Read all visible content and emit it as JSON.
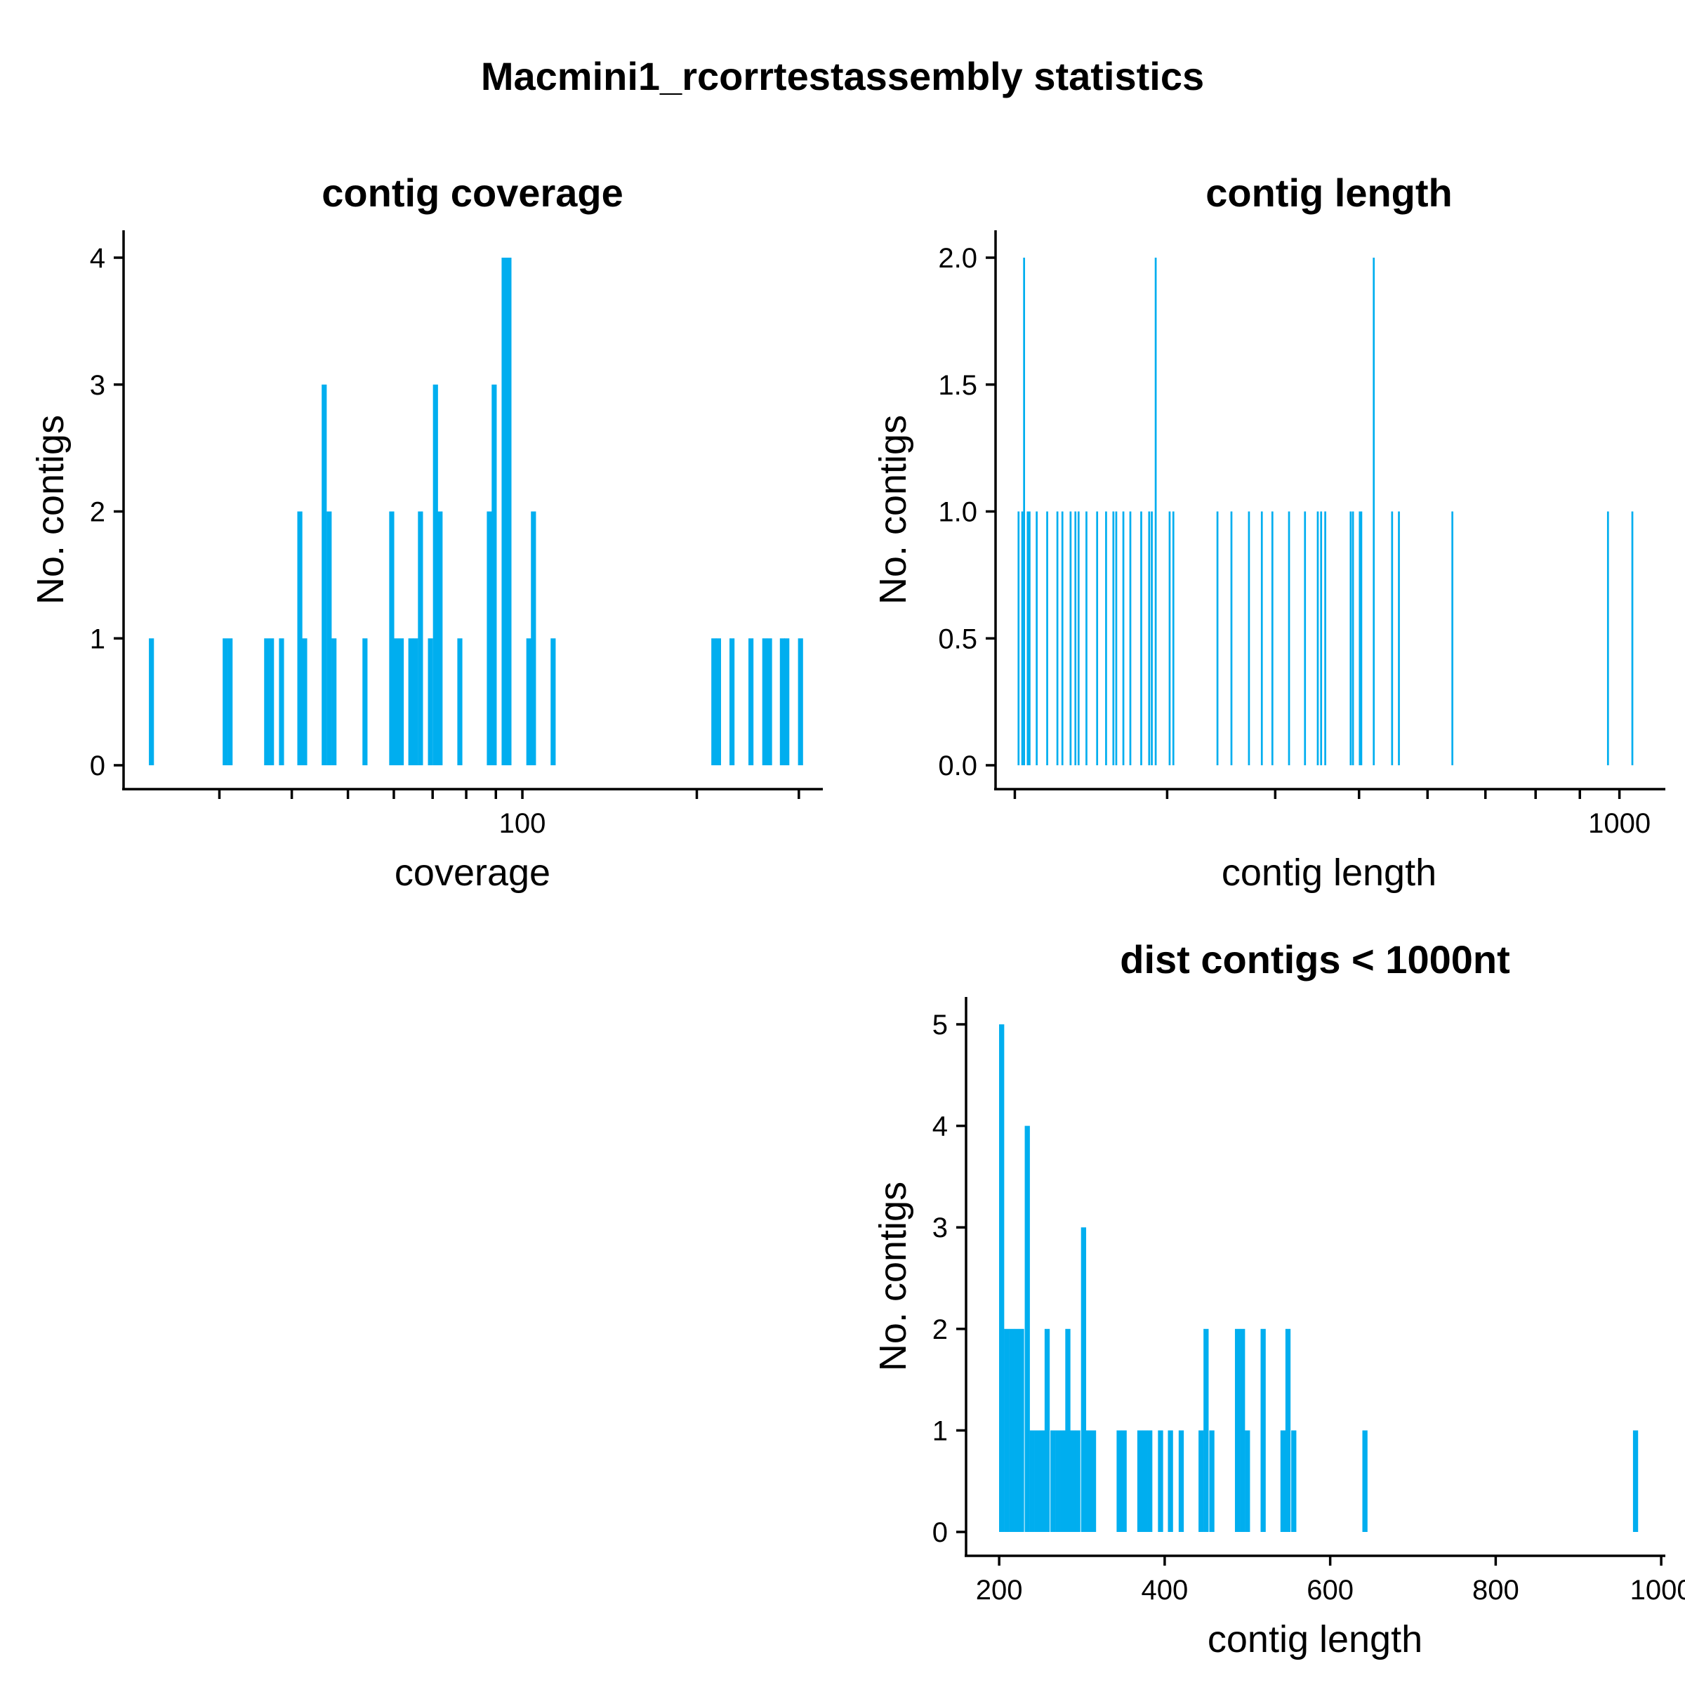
{
  "figure": {
    "title": "Macmini1_rcorrtestassembly statistics",
    "bar_color": "#00AEEF"
  },
  "chart_data": [
    {
      "id": "coverage",
      "type": "bar",
      "title": "contig coverage",
      "xlabel": "coverage",
      "ylabel": "No. contigs",
      "x_scale": "log",
      "xlim": [
        20.5,
        330
      ],
      "ylim": [
        0,
        4.2
      ],
      "x_major_ticks": [
        100
      ],
      "x_minor_ticks": [
        30,
        40,
        50,
        60,
        70,
        80,
        90,
        200,
        300
      ],
      "y_ticks": [
        0,
        1,
        2,
        3,
        4
      ],
      "bin_width_log10": 0.0087,
      "bins": [
        {
          "x": 22.9,
          "count": 1
        },
        {
          "x": 30.7,
          "count": 1
        },
        {
          "x": 31.3,
          "count": 1
        },
        {
          "x": 36.2,
          "count": 1
        },
        {
          "x": 36.9,
          "count": 1
        },
        {
          "x": 38.4,
          "count": 1
        },
        {
          "x": 41.3,
          "count": 2
        },
        {
          "x": 42.1,
          "count": 1
        },
        {
          "x": 45.5,
          "count": 3
        },
        {
          "x": 46.4,
          "count": 2
        },
        {
          "x": 47.3,
          "count": 1
        },
        {
          "x": 53.5,
          "count": 1
        },
        {
          "x": 59.5,
          "count": 2
        },
        {
          "x": 60.6,
          "count": 1
        },
        {
          "x": 61.8,
          "count": 1
        },
        {
          "x": 64.2,
          "count": 1
        },
        {
          "x": 65.4,
          "count": 1
        },
        {
          "x": 66.7,
          "count": 2
        },
        {
          "x": 69.4,
          "count": 1
        },
        {
          "x": 70.8,
          "count": 3
        },
        {
          "x": 72.1,
          "count": 2
        },
        {
          "x": 78.0,
          "count": 1
        },
        {
          "x": 87.7,
          "count": 2
        },
        {
          "x": 89.4,
          "count": 3
        },
        {
          "x": 93.0,
          "count": 4
        },
        {
          "x": 94.8,
          "count": 4
        },
        {
          "x": 102.6,
          "count": 1
        },
        {
          "x": 104.5,
          "count": 2
        },
        {
          "x": 113.0,
          "count": 1
        },
        {
          "x": 214.0,
          "count": 1
        },
        {
          "x": 218.0,
          "count": 1
        },
        {
          "x": 230.0,
          "count": 1
        },
        {
          "x": 248.0,
          "count": 1
        },
        {
          "x": 262.0,
          "count": 1
        },
        {
          "x": 267.0,
          "count": 1
        },
        {
          "x": 281.0,
          "count": 1
        },
        {
          "x": 286.0,
          "count": 1
        },
        {
          "x": 302.0,
          "count": 1
        }
      ]
    },
    {
      "id": "length",
      "type": "bar",
      "title": "contig length",
      "xlabel": "contig length",
      "ylabel": "No. contigs",
      "x_scale": "log",
      "xlim": [
        190,
        1130
      ],
      "ylim": [
        0,
        2.1
      ],
      "x_major_ticks": [
        1000
      ],
      "x_minor_ticks": [
        200,
        300,
        400,
        500,
        600,
        700,
        800,
        900
      ],
      "y_ticks": [
        0.0,
        0.5,
        1.0,
        1.5,
        2.0
      ],
      "bin_width_log10": 0.0022,
      "bins": [
        {
          "x": 202,
          "count": 1
        },
        {
          "x": 204,
          "count": 1
        },
        {
          "x": 205,
          "count": 2
        },
        {
          "x": 207,
          "count": 1
        },
        {
          "x": 208,
          "count": 1
        },
        {
          "x": 212,
          "count": 1
        },
        {
          "x": 218,
          "count": 1
        },
        {
          "x": 224,
          "count": 1
        },
        {
          "x": 227,
          "count": 1
        },
        {
          "x": 232,
          "count": 1
        },
        {
          "x": 235,
          "count": 1
        },
        {
          "x": 237,
          "count": 1
        },
        {
          "x": 242,
          "count": 1
        },
        {
          "x": 249,
          "count": 1
        },
        {
          "x": 255,
          "count": 1
        },
        {
          "x": 260,
          "count": 1
        },
        {
          "x": 262,
          "count": 1
        },
        {
          "x": 267,
          "count": 1
        },
        {
          "x": 272,
          "count": 1
        },
        {
          "x": 280,
          "count": 1
        },
        {
          "x": 286,
          "count": 1
        },
        {
          "x": 288,
          "count": 1
        },
        {
          "x": 291,
          "count": 2
        },
        {
          "x": 302,
          "count": 1
        },
        {
          "x": 305,
          "count": 1
        },
        {
          "x": 343,
          "count": 1
        },
        {
          "x": 356,
          "count": 1
        },
        {
          "x": 373,
          "count": 1
        },
        {
          "x": 386,
          "count": 1
        },
        {
          "x": 397,
          "count": 1
        },
        {
          "x": 415,
          "count": 1
        },
        {
          "x": 433,
          "count": 1
        },
        {
          "x": 448,
          "count": 1
        },
        {
          "x": 452,
          "count": 1
        },
        {
          "x": 457,
          "count": 1
        },
        {
          "x": 489,
          "count": 1
        },
        {
          "x": 492,
          "count": 1
        },
        {
          "x": 501,
          "count": 1
        },
        {
          "x": 503,
          "count": 1
        },
        {
          "x": 520,
          "count": 2
        },
        {
          "x": 546,
          "count": 1
        },
        {
          "x": 556,
          "count": 1
        },
        {
          "x": 641,
          "count": 1
        },
        {
          "x": 970,
          "count": 1
        },
        {
          "x": 1035,
          "count": 1
        }
      ]
    },
    {
      "id": "short",
      "type": "bar",
      "title": "dist contigs < 1000nt",
      "xlabel": "contig length",
      "ylabel": "No. contigs",
      "x_scale": "linear",
      "xlim": [
        160,
        1005
      ],
      "ylim": [
        0,
        5.25
      ],
      "x_ticks": [
        200,
        400,
        600,
        800,
        1000
      ],
      "y_ticks": [
        0,
        1,
        2,
        3,
        4,
        5
      ],
      "bin_width": 6.2,
      "bins": [
        {
          "x": 203,
          "count": 5
        },
        {
          "x": 209,
          "count": 2
        },
        {
          "x": 215,
          "count": 2
        },
        {
          "x": 221,
          "count": 2
        },
        {
          "x": 227,
          "count": 2
        },
        {
          "x": 234,
          "count": 4
        },
        {
          "x": 240,
          "count": 1
        },
        {
          "x": 246,
          "count": 1
        },
        {
          "x": 252,
          "count": 1
        },
        {
          "x": 258,
          "count": 2
        },
        {
          "x": 265,
          "count": 1
        },
        {
          "x": 271,
          "count": 1
        },
        {
          "x": 277,
          "count": 1
        },
        {
          "x": 283,
          "count": 2
        },
        {
          "x": 289,
          "count": 1
        },
        {
          "x": 295,
          "count": 1
        },
        {
          "x": 302,
          "count": 3
        },
        {
          "x": 308,
          "count": 1
        },
        {
          "x": 314,
          "count": 1
        },
        {
          "x": 345,
          "count": 1
        },
        {
          "x": 351,
          "count": 1
        },
        {
          "x": 370,
          "count": 1
        },
        {
          "x": 376,
          "count": 1
        },
        {
          "x": 382,
          "count": 1
        },
        {
          "x": 395,
          "count": 1
        },
        {
          "x": 407,
          "count": 1
        },
        {
          "x": 420,
          "count": 1
        },
        {
          "x": 444,
          "count": 1
        },
        {
          "x": 450,
          "count": 2
        },
        {
          "x": 457,
          "count": 1
        },
        {
          "x": 488,
          "count": 2
        },
        {
          "x": 494,
          "count": 2
        },
        {
          "x": 500,
          "count": 1
        },
        {
          "x": 519,
          "count": 2
        },
        {
          "x": 543,
          "count": 1
        },
        {
          "x": 549,
          "count": 2
        },
        {
          "x": 556,
          "count": 1
        },
        {
          "x": 642,
          "count": 1
        },
        {
          "x": 969,
          "count": 1
        }
      ]
    }
  ]
}
